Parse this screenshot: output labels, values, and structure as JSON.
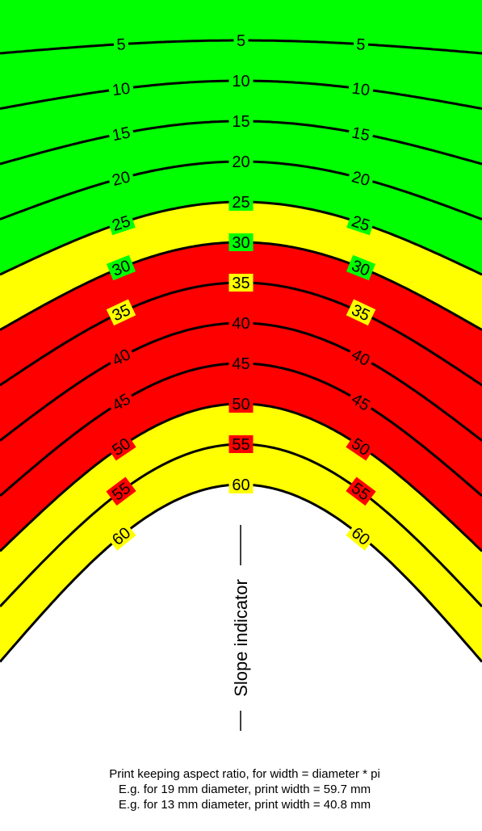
{
  "colors": {
    "green": "#00ff00",
    "yellow": "#ffff00",
    "red": "#ff0000",
    "white": "#ffffff",
    "line": "#000000"
  },
  "levels": [
    "5",
    "10",
    "15",
    "20",
    "25",
    "30",
    "35",
    "40",
    "45",
    "50",
    "55",
    "60"
  ],
  "band_fill": [
    "green",
    "green",
    "green",
    "green",
    "green",
    "yellow",
    "red",
    "red",
    "red",
    "red",
    "yellow",
    "yellow"
  ],
  "slope_indicator": "Slope indicator",
  "notes": [
    "Print keeping aspect ratio, for width = diameter * pi",
    "E.g. for 19 mm diameter, print width = 59.7 mm",
    "E.g. for 13 mm diameter, print width = 40.8 mm"
  ]
}
